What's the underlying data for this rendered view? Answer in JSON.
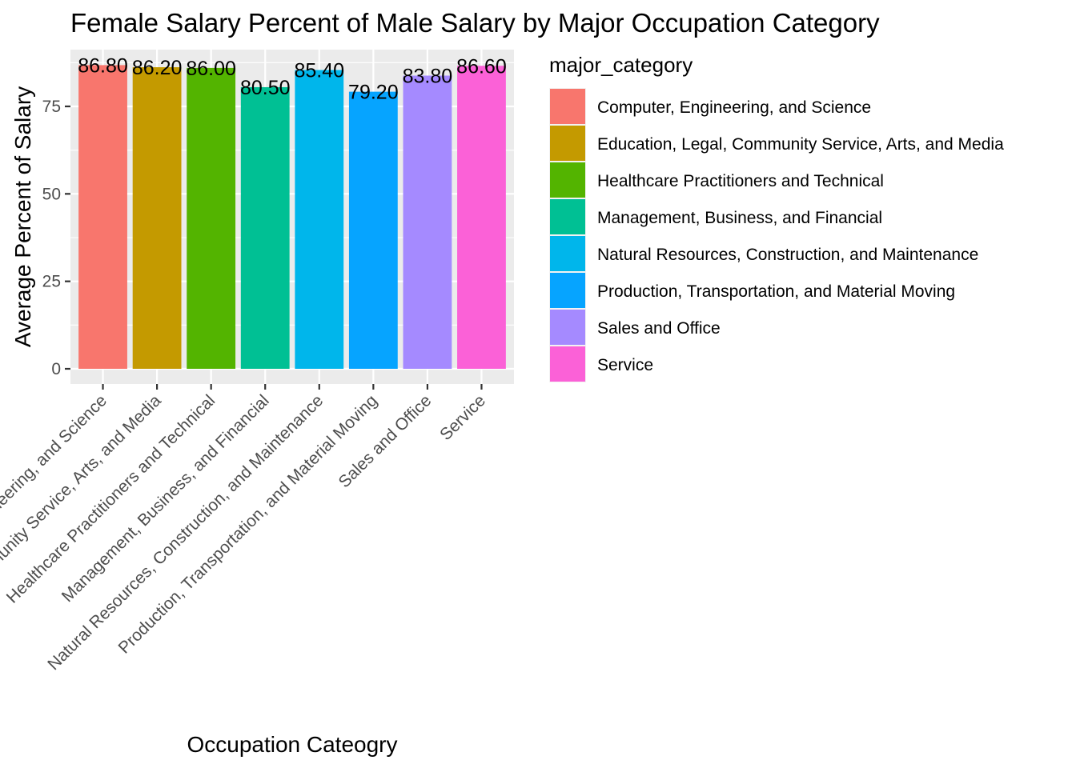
{
  "chart_data": {
    "type": "bar",
    "title": "Female Salary Percent of Male Salary by Major Occupation Category",
    "xlabel": "Occupation Cateogry",
    "ylabel": "Average Percent of Salary",
    "categories": [
      "Computer, Engineering, and Science",
      "Education, Legal, Community Service, Arts, and Media",
      "Healthcare Practitioners and Technical",
      "Management, Business, and Financial",
      "Natural Resources, Construction, and Maintenance",
      "Production, Transportation, and Material Moving",
      "Sales and Office",
      "Service"
    ],
    "values": [
      86.8,
      86.2,
      86.0,
      80.5,
      85.4,
      79.2,
      83.8,
      86.6
    ],
    "data_labels": [
      "86.80",
      "86.20",
      "86.00",
      "80.50",
      "85.40",
      "79.20",
      "83.80",
      "86.60"
    ],
    "colors": [
      "#F8766D",
      "#C49A00",
      "#53B400",
      "#00C094",
      "#00B6EB",
      "#06A4FF",
      "#A58AFF",
      "#FB61D7"
    ],
    "y_ticks": [
      0,
      25,
      50,
      75
    ],
    "ylim": [
      0,
      91
    ],
    "grid": true,
    "legend": {
      "title": "major_category",
      "placement": "right",
      "entries": [
        "Computer, Engineering, and Science",
        "Education, Legal, Community Service, Arts, and Media",
        "Healthcare Practitioners and Technical",
        "Management, Business, and Financial",
        "Natural Resources, Construction, and Maintenance",
        "Production, Transportation, and Material Moving",
        "Sales and Office",
        "Service"
      ]
    }
  }
}
